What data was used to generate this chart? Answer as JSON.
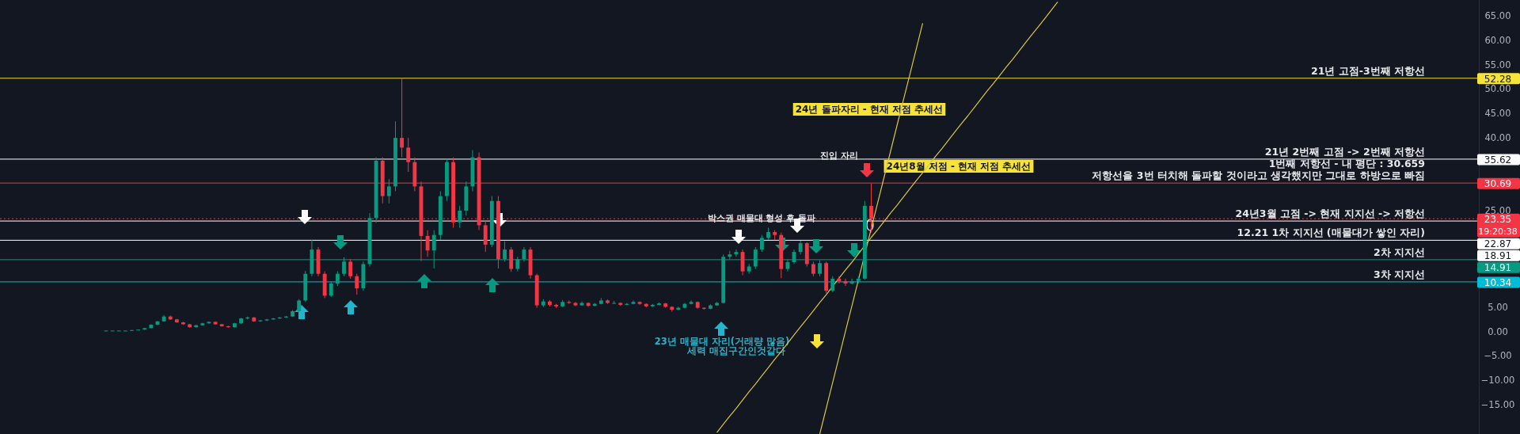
{
  "chart_data": {
    "type": "candlestick",
    "categories": [
      null,
      null,
      null,
      null,
      null,
      null,
      null,
      null,
      null,
      null,
      null,
      null,
      null,
      null,
      null,
      null,
      null,
      null,
      null,
      null,
      null,
      null,
      null,
      null,
      null,
      null,
      null,
      null,
      null,
      null,
      null,
      null,
      null,
      null,
      null,
      null,
      null,
      null,
      null,
      null,
      null,
      null,
      null,
      null,
      null,
      null,
      null,
      null,
      null,
      null,
      null,
      null,
      null,
      null,
      null,
      null,
      null,
      null,
      null,
      null,
      null,
      null,
      null,
      null,
      null,
      null,
      null,
      null,
      null,
      null,
      null,
      null,
      null,
      null,
      null,
      null,
      null,
      null,
      null,
      null,
      null,
      null,
      null,
      null,
      null,
      null,
      null,
      null,
      null,
      null,
      null,
      null,
      null,
      null,
      null,
      null,
      null,
      null,
      null,
      null,
      null,
      null,
      null,
      null,
      null,
      null,
      null,
      null,
      null,
      null,
      null,
      null,
      null,
      null,
      null,
      null,
      null,
      null,
      null,
      null,
      null,
      null,
      null,
      null,
      null,
      null,
      null,
      null,
      null,
      null,
      null,
      null,
      null,
      null,
      null,
      null,
      null,
      null,
      null,
      null,
      null,
      null,
      null,
      null,
      null,
      null,
      null,
      null,
      null,
      null,
      null,
      null,
      null,
      null,
      null,
      null,
      null,
      null,
      null,
      null,
      null,
      null,
      null,
      null,
      null,
      null,
      null,
      null,
      null,
      null,
      null,
      null,
      null,
      null,
      null,
      null,
      null,
      null,
      null,
      null,
      null,
      null,
      null,
      null,
      null,
      null,
      null,
      null,
      null,
      null,
      null,
      null,
      null,
      null,
      null,
      null,
      null,
      null,
      null,
      null,
      null,
      null,
      null,
      null,
      null,
      null,
      null,
      null,
      null,
      null,
      null,
      null,
      null,
      null,
      null,
      null,
      null,
      null,
      null,
      null,
      null,
      null,
      null,
      null,
      null,
      null,
      null,
      null,
      null,
      null
    ],
    "ohlc": [
      null,
      null,
      null,
      null,
      null,
      null,
      null,
      null,
      null,
      null,
      null,
      null,
      null,
      null,
      null,
      null,
      [
        0.3,
        0.32,
        0.28,
        0.3
      ],
      [
        0.3,
        0.32,
        0.28,
        0.3
      ],
      [
        0.3,
        0.33,
        0.28,
        0.3
      ],
      [
        0.3,
        0.33,
        0.28,
        0.3
      ],
      [
        0.3,
        0.42,
        0.29,
        0.4
      ],
      [
        0.4,
        0.53,
        0.38,
        0.5
      ],
      [
        0.5,
        0.85,
        0.47,
        0.8
      ],
      [
        0.8,
        1.6,
        0.75,
        1.5
      ],
      [
        1.5,
        2.3,
        1.4,
        2.2
      ],
      [
        2.2,
        3.5,
        2.1,
        3.2
      ],
      [
        3.2,
        3.4,
        2.5,
        2.6
      ],
      [
        2.6,
        2.7,
        1.9,
        2.0
      ],
      [
        2.0,
        2.1,
        1.5,
        1.6
      ],
      [
        1.6,
        1.7,
        0.9,
        1.0
      ],
      [
        1.0,
        1.5,
        0.9,
        1.4
      ],
      [
        1.4,
        1.9,
        1.3,
        1.8
      ],
      [
        1.8,
        2.2,
        1.7,
        2.1
      ],
      [
        2.1,
        2.2,
        1.5,
        1.6
      ],
      [
        1.6,
        1.7,
        1.1,
        1.2
      ],
      [
        1.2,
        1.3,
        0.9,
        1.0
      ],
      [
        1.0,
        1.9,
        0.9,
        1.8
      ],
      [
        1.8,
        2.9,
        1.7,
        2.8
      ],
      [
        2.8,
        3.2,
        2.6,
        3.0
      ],
      [
        3.0,
        3.1,
        2.1,
        2.2
      ],
      [
        2.2,
        2.5,
        2.1,
        2.4
      ],
      [
        2.4,
        2.7,
        2.3,
        2.6
      ],
      [
        2.6,
        2.9,
        2.5,
        2.8
      ],
      [
        2.8,
        3.1,
        2.7,
        3.0
      ],
      [
        3.0,
        3.3,
        2.9,
        3.2
      ],
      [
        3.2,
        4.5,
        3.1,
        4.3
      ],
      [
        4.3,
        6.8,
        4.1,
        6.5
      ],
      [
        6.5,
        12.6,
        6.2,
        12
      ],
      [
        12,
        19,
        11.5,
        17
      ],
      [
        17,
        17.5,
        11.5,
        12
      ],
      [
        12,
        12.5,
        7,
        7.5
      ],
      [
        7.5,
        10.5,
        7.2,
        10
      ],
      [
        10,
        12.5,
        9.5,
        12
      ],
      [
        12,
        15.4,
        11.5,
        14.5
      ],
      [
        14.5,
        15,
        11,
        11.5
      ],
      [
        11.5,
        12,
        7.7,
        9
      ],
      [
        9,
        14.5,
        8.5,
        14
      ],
      [
        14,
        24.5,
        13.5,
        23.5
      ],
      [
        23.5,
        36,
        22.5,
        35.3
      ],
      [
        35.3,
        36,
        26.5,
        28
      ],
      [
        28,
        31.5,
        26.5,
        30
      ],
      [
        30,
        43.4,
        29,
        40
      ],
      [
        40,
        52.3,
        36,
        38
      ],
      [
        38,
        40,
        33,
        35
      ],
      [
        35,
        36,
        29,
        30
      ],
      [
        30,
        31,
        14.6,
        19.8
      ],
      [
        19.8,
        21,
        15.5,
        16.8
      ],
      [
        16.8,
        21,
        13.1,
        20
      ],
      [
        20,
        29,
        19,
        28
      ],
      [
        28,
        35.7,
        27,
        35
      ],
      [
        35,
        36,
        21.5,
        22.6
      ],
      [
        22.6,
        26,
        21.5,
        25
      ],
      [
        25,
        31,
        24,
        30
      ],
      [
        30,
        37.5,
        29,
        36
      ],
      [
        36,
        37,
        21,
        22
      ],
      [
        22,
        23,
        16.5,
        18
      ],
      [
        18,
        28,
        17.5,
        27
      ],
      [
        27,
        28,
        13.1,
        15
      ],
      [
        15,
        18.7,
        14.5,
        17
      ],
      [
        17,
        17.5,
        12.4,
        13
      ],
      [
        13,
        15.5,
        12.5,
        15
      ],
      [
        15,
        17.5,
        14.5,
        17
      ],
      [
        17,
        17.5,
        11,
        11.7
      ],
      [
        11.7,
        12,
        5,
        5.5
      ],
      [
        5.5,
        6.8,
        5.2,
        6.3
      ],
      [
        6.3,
        6.6,
        5.3,
        5.6
      ],
      [
        5.6,
        5.8,
        5,
        5.3
      ],
      [
        5.3,
        6.6,
        5.2,
        6.2
      ],
      [
        6.2,
        6.5,
        5.8,
        6.0
      ],
      [
        6.0,
        6.2,
        5.3,
        5.5
      ],
      [
        5.5,
        6.3,
        5.4,
        6.0
      ],
      [
        6.0,
        6.1,
        5.2,
        5.4
      ],
      [
        5.4,
        6.0,
        5.3,
        5.8
      ],
      [
        5.8,
        7.0,
        5.7,
        6.5
      ],
      [
        6.5,
        6.7,
        5.8,
        6.0
      ],
      [
        6.0,
        6.4,
        5.8,
        6.0
      ],
      [
        6.0,
        6.1,
        5.4,
        5.6
      ],
      [
        5.6,
        6.0,
        5.5,
        5.8
      ],
      [
        5.8,
        6.5,
        5.7,
        6.2
      ],
      [
        6.2,
        6.3,
        5.6,
        5.8
      ],
      [
        5.8,
        5.9,
        5.1,
        5.3
      ],
      [
        5.3,
        5.8,
        5.2,
        5.6
      ],
      [
        5.6,
        6.1,
        5.5,
        5.9
      ],
      [
        5.9,
        6.0,
        5.0,
        5.2
      ],
      [
        5.2,
        5.3,
        4.2,
        4.6
      ],
      [
        4.6,
        5.2,
        4.5,
        5.0
      ],
      [
        5.0,
        6.0,
        4.9,
        5.8
      ],
      [
        5.8,
        6.5,
        5.7,
        6.2
      ],
      [
        6.2,
        6.3,
        4.8,
        5.0
      ],
      [
        5.0,
        5.1,
        4.6,
        4.8
      ],
      [
        4.8,
        5.7,
        4.7,
        5.5
      ],
      [
        5.5,
        6.2,
        5.4,
        6.0
      ],
      [
        6.0,
        16,
        5.9,
        15.5
      ],
      [
        15.5,
        16.7,
        15,
        16
      ],
      [
        16,
        17,
        15.5,
        16.5
      ],
      [
        16.5,
        17,
        11.7,
        12.5
      ],
      [
        12.5,
        14,
        12,
        13.5
      ],
      [
        13.5,
        17.5,
        13,
        17
      ],
      [
        17,
        20,
        16.5,
        19.4
      ],
      [
        19.4,
        21.5,
        19,
        20.6
      ],
      [
        20.6,
        21,
        19,
        20
      ],
      [
        20,
        20.5,
        11.1,
        13
      ],
      [
        13,
        15,
        12.5,
        14.4
      ],
      [
        14.4,
        17,
        14,
        16.5
      ],
      [
        16.5,
        18.8,
        16,
        18.3
      ],
      [
        18.3,
        18.5,
        13.5,
        14
      ],
      [
        14,
        14.5,
        11.5,
        12
      ],
      [
        12,
        14.8,
        11.5,
        14.2
      ],
      [
        14.2,
        14.5,
        8,
        8.5
      ],
      [
        8.5,
        11.5,
        8.2,
        11
      ],
      [
        11,
        11.5,
        10,
        10.5
      ],
      [
        10.5,
        11,
        9.5,
        10
      ],
      [
        10,
        11,
        9.8,
        10.5
      ],
      [
        10.5,
        11.5,
        10,
        11
      ],
      [
        11,
        27,
        10.8,
        26
      ],
      [
        26,
        30.6,
        20.5,
        23.35
      ],
      null,
      null,
      null,
      null,
      null,
      null,
      null,
      null,
      null,
      null,
      null,
      null,
      null,
      null,
      null,
      null,
      null,
      null,
      null,
      null,
      null,
      null,
      null,
      null,
      null,
      null,
      null,
      null,
      null,
      null,
      null,
      null,
      null,
      null,
      null,
      null,
      null,
      null,
      null,
      null,
      null,
      null,
      null,
      null,
      null,
      null,
      null,
      null,
      null,
      null,
      null,
      null,
      null,
      null,
      null,
      null,
      null,
      null,
      null,
      null,
      null,
      null,
      null,
      null,
      null,
      null,
      null,
      null,
      null,
      null,
      null,
      null,
      null,
      null,
      null,
      null,
      null,
      null,
      null,
      null,
      null,
      null,
      null,
      null,
      null,
      null,
      null,
      null,
      null,
      null,
      null,
      null,
      null,
      null
    ],
    "series": [
      {
        "type": "line",
        "color": "#d9c640",
        "values": [
          null,
          null,
          null,
          null,
          null,
          null,
          null,
          null,
          null,
          null,
          null,
          null,
          null,
          null,
          null,
          null,
          null,
          null,
          null,
          null,
          null,
          null,
          null,
          null,
          null,
          null,
          null,
          null,
          null,
          null,
          null,
          null,
          null,
          null,
          null,
          null,
          null,
          null,
          null,
          null,
          null,
          null,
          null,
          null,
          null,
          null,
          null,
          null,
          null,
          null,
          null,
          null,
          null,
          null,
          null,
          null,
          null,
          null,
          null,
          null,
          null,
          null,
          null,
          null,
          null,
          null,
          null,
          null,
          null,
          null,
          null,
          null,
          null,
          null,
          null,
          null,
          null,
          null,
          null,
          null,
          null,
          null,
          null,
          null,
          null,
          null,
          null,
          null,
          null,
          null,
          null,
          null,
          null,
          null,
          null,
          null,
          null,
          null,
          null,
          null,
          null,
          null,
          null,
          null,
          null,
          null,
          null,
          null,
          null,
          null,
          null,
          -20.7,
          -19.0,
          -17.3,
          -15.7,
          -14.0,
          -12.3,
          -10.7,
          -9.0,
          -7.3,
          -5.6,
          -4.0,
          -2.3,
          -0.6,
          1.1,
          2.7,
          4.4,
          6.1,
          7.7,
          9.4,
          11.1,
          12.8,
          14.4,
          16.1,
          17.8,
          19.5,
          21.1,
          22.8,
          24.5,
          26.1,
          27.8,
          29.5,
          31.2,
          32.8,
          34.5,
          36.2,
          37.8,
          39.5,
          41.2,
          42.9,
          44.5,
          46.2,
          47.9,
          49.6,
          51.2,
          52.9,
          54.6,
          56.2,
          57.9,
          59.6,
          61.3,
          62.9,
          64.6,
          66.3,
          68.0,
          null,
          null,
          null,
          null,
          null,
          null,
          null,
          null,
          null,
          null,
          null,
          null,
          null,
          null,
          null,
          null,
          null,
          null,
          null,
          null,
          null,
          null,
          null,
          null,
          null,
          null,
          null,
          null,
          null,
          null,
          null,
          null,
          null,
          null,
          null,
          null,
          null,
          null,
          null,
          null,
          null,
          null,
          null,
          null,
          null,
          null,
          null,
          null,
          null,
          null,
          null,
          null,
          null,
          null,
          null,
          null,
          null,
          null,
          null,
          null,
          null,
          null,
          null,
          null,
          null
        ]
      },
      {
        "type": "line",
        "color": "#d9c640",
        "values": [
          null,
          null,
          null,
          null,
          null,
          null,
          null,
          null,
          null,
          null,
          null,
          null,
          null,
          null,
          null,
          null,
          null,
          null,
          null,
          null,
          null,
          null,
          null,
          null,
          null,
          null,
          null,
          null,
          null,
          null,
          null,
          null,
          null,
          null,
          null,
          null,
          null,
          null,
          null,
          null,
          null,
          null,
          null,
          null,
          null,
          null,
          null,
          null,
          null,
          null,
          null,
          null,
          null,
          null,
          null,
          null,
          null,
          null,
          null,
          null,
          null,
          null,
          null,
          null,
          null,
          null,
          null,
          null,
          null,
          null,
          null,
          null,
          null,
          null,
          null,
          null,
          null,
          null,
          null,
          null,
          null,
          null,
          null,
          null,
          null,
          null,
          null,
          null,
          null,
          null,
          null,
          null,
          null,
          null,
          null,
          null,
          null,
          null,
          null,
          null,
          null,
          null,
          null,
          null,
          null,
          null,
          null,
          null,
          null,
          null,
          null,
          null,
          null,
          null,
          null,
          null,
          null,
          null,
          null,
          null,
          null,
          null,
          null,
          null,
          null,
          null,
          null,
          -21.0,
          -15.7,
          -10.4,
          -5.1,
          0.2,
          5.4,
          10.7,
          null,
          21.3,
          26.6,
          31.9,
          37.2,
          42.5,
          47.8,
          53.0,
          58.3,
          63.6,
          null,
          null,
          null,
          null,
          null,
          null,
          null,
          null,
          null,
          null,
          null,
          null,
          null,
          null,
          null,
          null,
          null,
          null,
          null,
          null,
          null,
          null,
          null,
          null,
          null,
          null,
          null,
          null,
          null,
          null,
          null,
          null,
          null,
          null,
          null,
          null,
          null,
          null,
          null,
          null,
          null,
          null,
          null,
          null,
          null,
          null,
          null,
          null,
          null,
          null,
          null,
          null,
          null,
          null,
          null,
          null,
          null,
          null,
          null,
          null,
          null,
          null,
          null,
          null,
          null,
          null,
          null,
          null,
          null,
          null,
          null,
          null,
          null,
          null,
          null,
          null,
          null,
          null,
          null,
          null,
          null,
          null,
          null,
          null,
          null,
          null
        ]
      }
    ],
    "ylim": [
      -21.0,
      68.4
    ],
    "yticks": [
      {
        "value": -15,
        "label": "−15.00"
      },
      {
        "value": -10,
        "label": "−10.00"
      },
      {
        "value": -5,
        "label": "−5.00"
      },
      {
        "value": 0,
        "label": "0.00"
      },
      {
        "value": 5,
        "label": "5.00"
      },
      {
        "value": 25,
        "label": "25.00"
      },
      {
        "value": 40,
        "label": "40.00"
      },
      {
        "value": 45,
        "label": "45.00"
      },
      {
        "value": 50,
        "label": "50.00"
      },
      {
        "value": 55,
        "label": "55.00"
      },
      {
        "value": 60,
        "label": "60.00"
      },
      {
        "value": 65,
        "label": "65.00"
      }
    ],
    "tick_labels": "y",
    "ref_lines": [
      {
        "axis": "y",
        "value": 52.28,
        "label": "21년 고점-3번째 저항선",
        "color": "#f5e23a",
        "line_style": "solid"
      },
      {
        "axis": "y",
        "value": 35.62,
        "label": "21년 2번째 고점 -> 2번째 저항선",
        "color": "#ffffff",
        "line_style": "solid"
      },
      {
        "axis": "y",
        "value": 30.69,
        "label": "저항선을 3번 터치해 돌파할 것이라고 생각했지만 그대로 하방으로 빠짐",
        "color": "#f23645",
        "line_style": "solid"
      },
      {
        "axis": "y",
        "value": 23.35,
        "label": null,
        "color": "#f23645",
        "line_style": "dotted"
      },
      {
        "axis": "y",
        "value": 22.87,
        "label": "24년3월 고점 -> 현재 지지선 -> 저항선",
        "color": "#ffffff",
        "line_style": "solid"
      },
      {
        "axis": "y",
        "value": 18.91,
        "label": "12.21 1차 지지선 (매물대가 쌓인 자리)",
        "color": "#ffffff",
        "line_style": "solid"
      },
      {
        "axis": "y",
        "value": 14.91,
        "label": "2차 지지선",
        "color": "#089981",
        "line_style": "solid"
      },
      {
        "axis": "y",
        "value": 10.34,
        "label": "3차 지지선",
        "color": "#00bcd4",
        "line_style": "solid"
      }
    ],
    "annotations": [
      "24년 돌파자리 - 현재 저점 추세선",
      "24년8월 저점 - 현재 저점 추세선",
      "진입 자리",
      "박스권 매물대 형성 후 돌파",
      "23년 매물대 자리(거래량 많음)",
      "세력 매집구간인것같다",
      "1번째 저항선 - 내 평단 : 30.659",
      "52.28",
      "35.62",
      "30.69",
      "23.35",
      "22.87",
      "18.91",
      "14.91",
      "10.34",
      "19:20:38"
    ]
  }
}
